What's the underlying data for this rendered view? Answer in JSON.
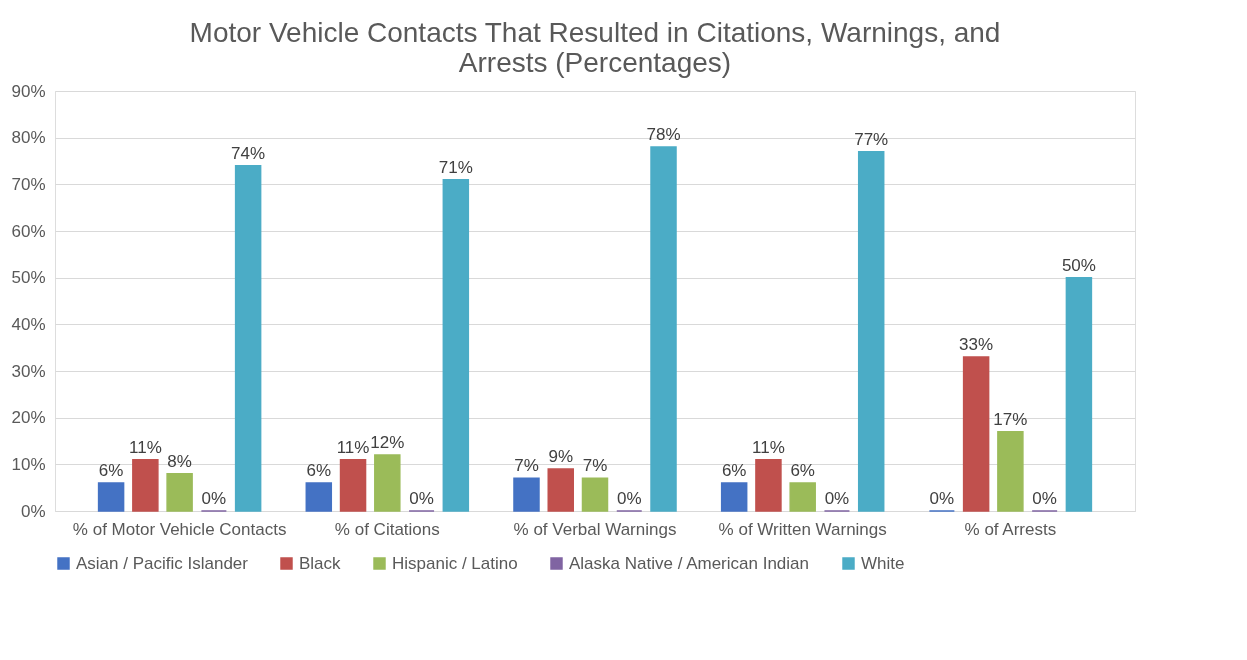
{
  "chart_data": {
    "type": "bar",
    "title": "Motor Vehicle Contacts That Resulted in Citations, Warnings, and Arrests (Percentages)",
    "categories": [
      "% of Motor Vehicle Contacts",
      "% of Citations",
      "% of Verbal Warnings",
      "% of Written Warnings",
      "% of Arrests"
    ],
    "series": [
      {
        "name": "Asian / Pacific Islander",
        "color": "#4472c4",
        "values": [
          6,
          6,
          7,
          6,
          0
        ],
        "value_labels": [
          "6%",
          "6%",
          "7%",
          "6%",
          "0%"
        ]
      },
      {
        "name": "Black",
        "color": "#c0504d",
        "values": [
          11,
          11,
          9,
          11,
          33
        ],
        "value_labels": [
          "11%",
          "11%",
          "9%",
          "11%",
          "33%"
        ]
      },
      {
        "name": "Hispanic / Latino",
        "color": "#9bbb59",
        "values": [
          8,
          12,
          7,
          6,
          17
        ],
        "value_labels": [
          "8%",
          "12%",
          "7%",
          "6%",
          "17%"
        ]
      },
      {
        "name": "Alaska Native / American Indian",
        "color": "#8064a2",
        "values": [
          0,
          0,
          0,
          0,
          0
        ],
        "value_labels": [
          "0%",
          "0%",
          "0%",
          "0%",
          "0%"
        ]
      },
      {
        "name": "White",
        "color": "#4bacc6",
        "values": [
          74,
          71,
          78,
          77,
          50
        ],
        "value_labels": [
          "74%",
          "71%",
          "78%",
          "77%",
          "50%"
        ]
      }
    ],
    "ylim": [
      0,
      90
    ],
    "yticks": [
      {
        "value": 0,
        "label": "0%"
      },
      {
        "value": 10,
        "label": "10%"
      },
      {
        "value": 20,
        "label": "20%"
      },
      {
        "value": 30,
        "label": "30%"
      },
      {
        "value": 40,
        "label": "40%"
      },
      {
        "value": 50,
        "label": "50%"
      },
      {
        "value": 60,
        "label": "60%"
      },
      {
        "value": 70,
        "label": "70%"
      },
      {
        "value": 80,
        "label": "80%"
      },
      {
        "value": 90,
        "label": "90%"
      }
    ],
    "grid": "y",
    "legend": "bottom"
  }
}
